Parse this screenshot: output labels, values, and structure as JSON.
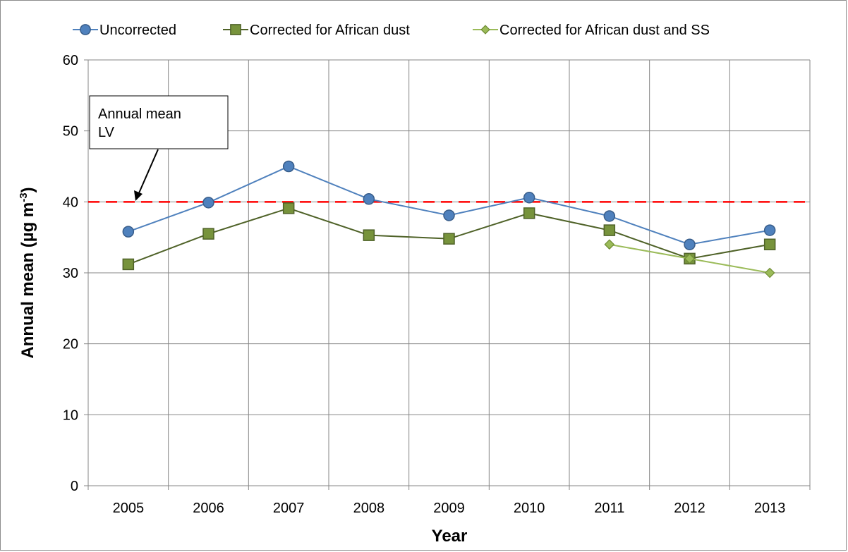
{
  "chart_data": {
    "type": "line",
    "title": "",
    "xlabel": "Year",
    "ylabel_main": "Annual mean (µg m",
    "ylabel_sup": "-3",
    "ylabel_close": ")",
    "categories": [
      "2005",
      "2006",
      "2007",
      "2008",
      "2009",
      "2010",
      "2011",
      "2012",
      "2013"
    ],
    "ylim": [
      0,
      60
    ],
    "yticks": [
      "0",
      "10",
      "20",
      "30",
      "40",
      "50",
      "60"
    ],
    "grid": true,
    "legend_position": "top",
    "series": [
      {
        "name": "Uncorrected",
        "marker": "circle",
        "color": "#4f81bd",
        "fill": "#4f81bd",
        "stroke": "#385d8a",
        "values": [
          35.8,
          39.9,
          45.0,
          40.4,
          38.1,
          40.6,
          38.0,
          34.0,
          36.0
        ]
      },
      {
        "name": "Corrected for African dust",
        "marker": "square",
        "color": "#4f6228",
        "fill": "#77933c",
        "stroke": "#4f6228",
        "values": [
          31.2,
          35.5,
          39.1,
          35.3,
          34.8,
          38.4,
          36.0,
          32.0,
          34.0
        ]
      },
      {
        "name": "Corrected for African dust and SS",
        "marker": "diamond",
        "color": "#9bbb59",
        "fill": "#9bbb59",
        "stroke": "#6f8c34",
        "values": [
          null,
          null,
          null,
          null,
          null,
          null,
          34.0,
          32.0,
          30.0
        ]
      }
    ],
    "limit_line": {
      "value": 40,
      "color": "#ff0000"
    },
    "annotation": {
      "lines": [
        "Annual mean",
        "LV"
      ]
    }
  }
}
